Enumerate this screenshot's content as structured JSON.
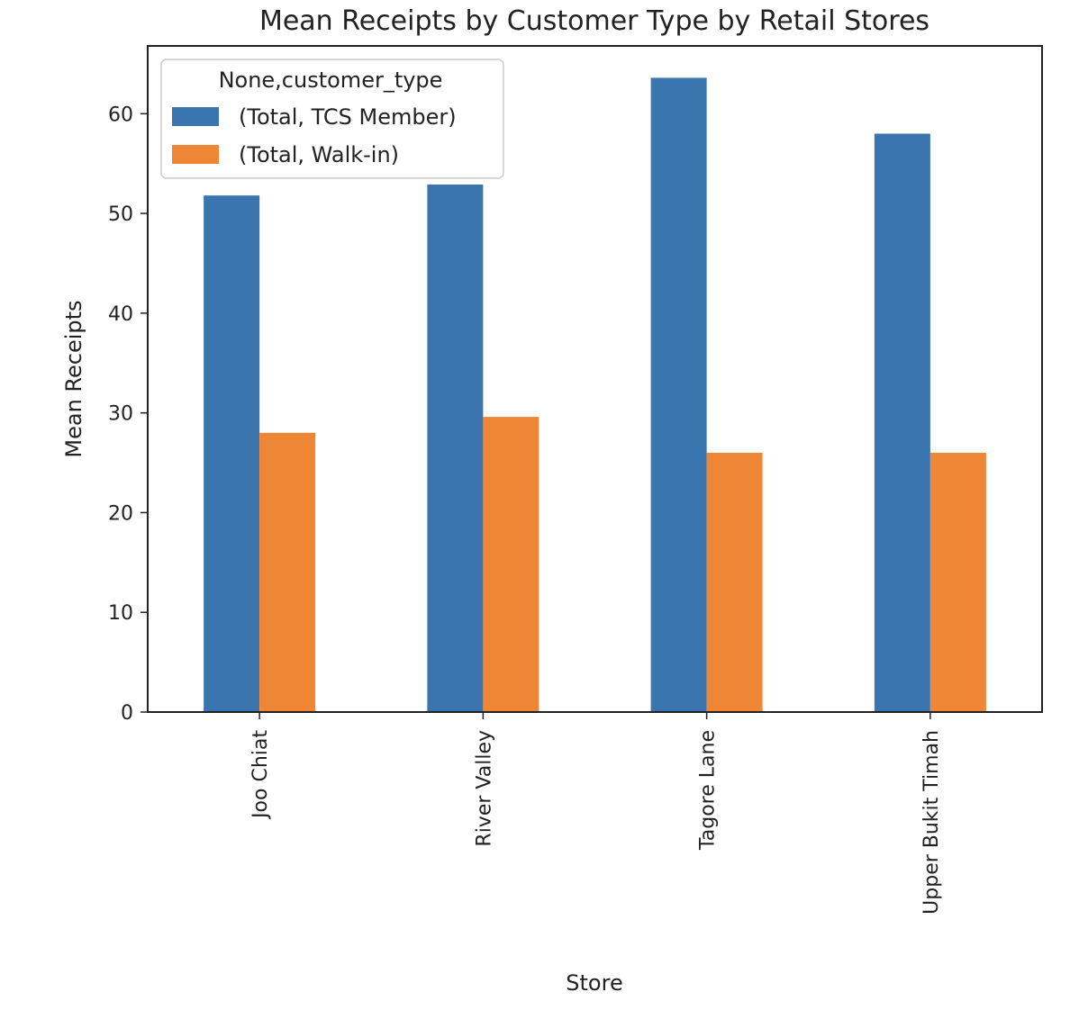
{
  "chart_data": {
    "type": "bar",
    "title": "Mean Receipts by Customer Type by Retail Stores",
    "xlabel": "Store",
    "ylabel": "Mean Receipts",
    "categories": [
      "Joo Chiat",
      "River Valley",
      "Tagore Lane",
      "Upper Bukit Timah"
    ],
    "series": [
      {
        "name": "(Total, TCS Member)",
        "color": "#3a75af",
        "values": [
          51.8,
          52.9,
          63.6,
          58.0
        ]
      },
      {
        "name": "(Total, Walk-in)",
        "color": "#ef8636",
        "values": [
          28.0,
          29.6,
          26.0,
          26.0
        ]
      }
    ],
    "yticks": [
      0,
      10,
      20,
      30,
      40,
      50,
      60
    ],
    "ylim": [
      0,
      66.8
    ],
    "legend": {
      "title": "None,customer_type",
      "placement": "upper-left"
    },
    "grid": false
  }
}
